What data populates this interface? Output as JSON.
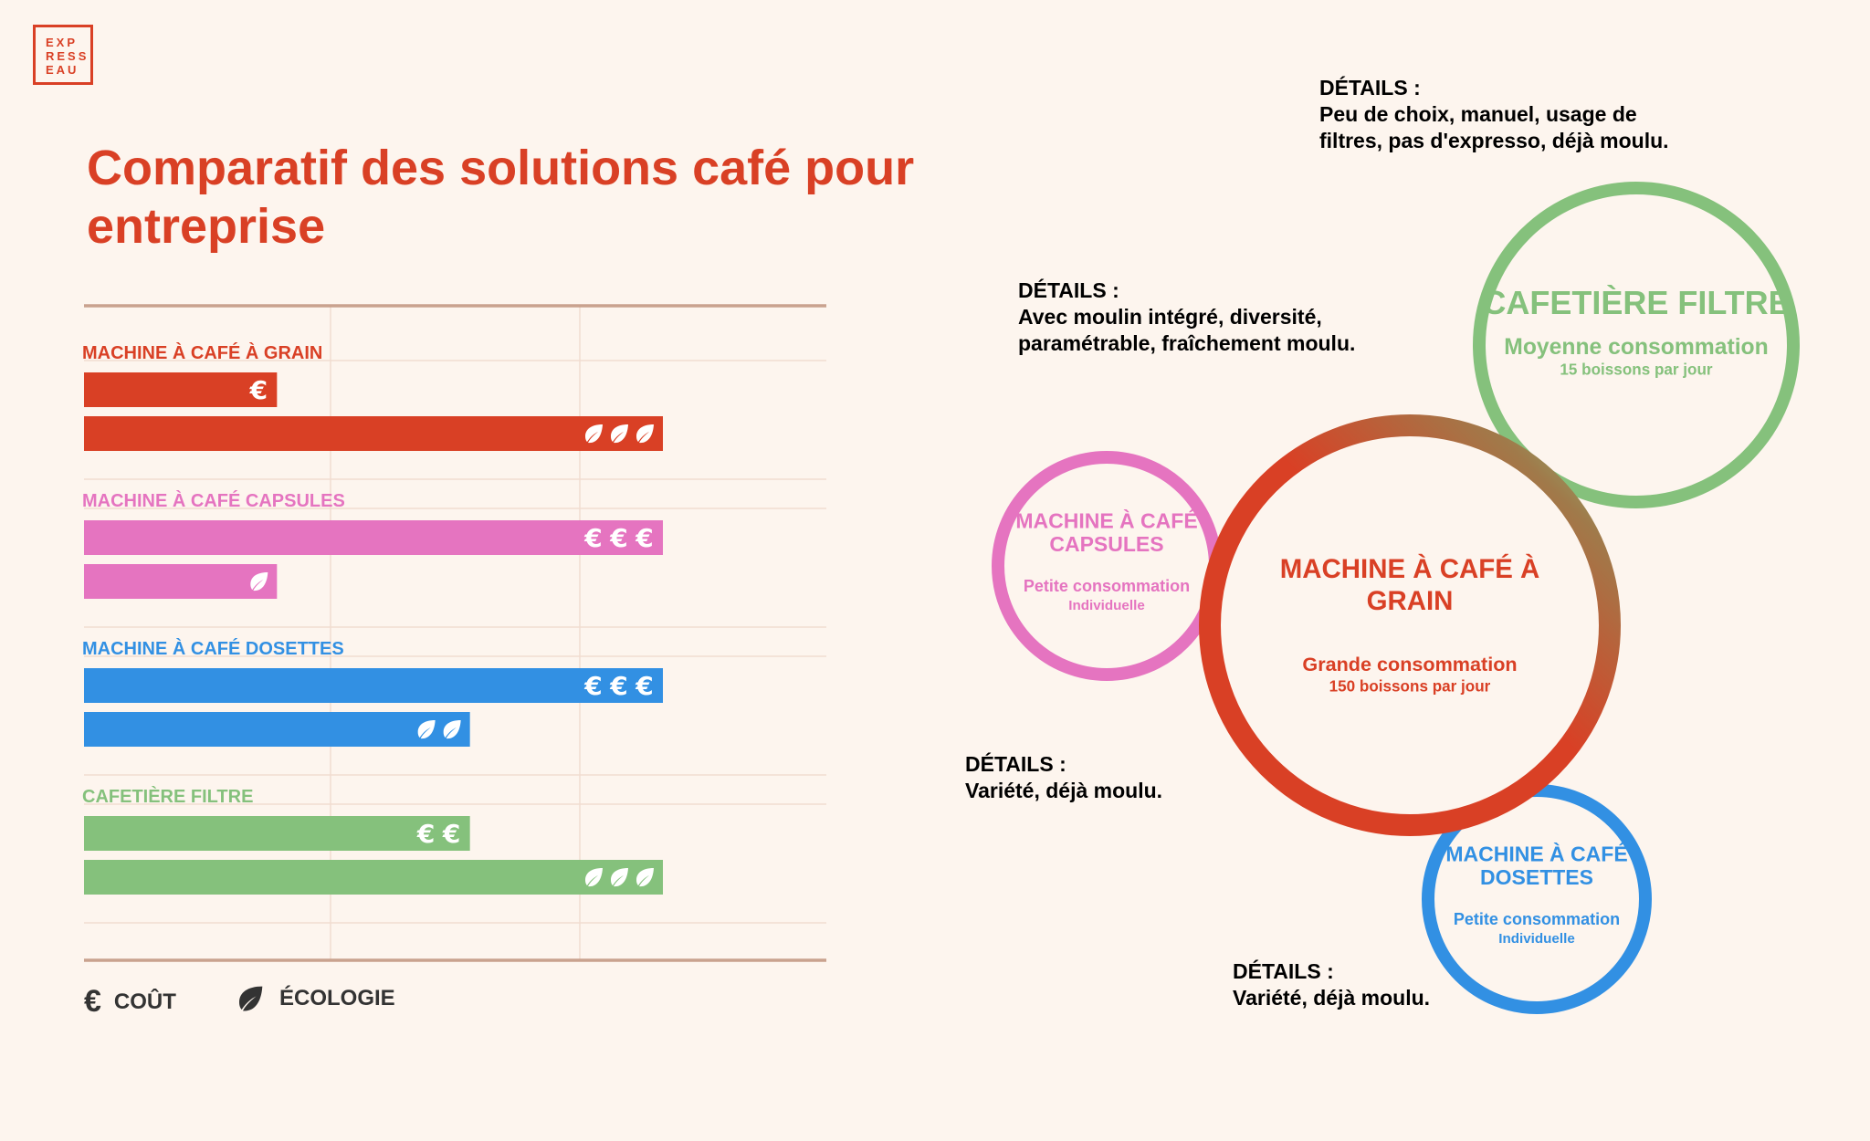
{
  "brand": {
    "logo_lines": [
      "EXP",
      "RESS",
      "EAU"
    ]
  },
  "title": "Comparatif des solutions café pour entreprise",
  "colors": {
    "grain": "#d94025",
    "capsules": "#e574c0",
    "dosettes": "#3290e3",
    "filtre": "#85c17c",
    "axis": "#c9a28e",
    "grid": "#f1ddd0"
  },
  "legend": {
    "cost_symbol": "€",
    "cost_label": "COÛT",
    "eco_label": "ÉCOLOGIE"
  },
  "chart_data": {
    "type": "bar",
    "orientation": "horizontal",
    "scale_max": 3,
    "grid": true,
    "legend_position": "bottom-left",
    "categories": [
      {
        "key": "grain",
        "label": "MACHINE À CAFÉ À GRAIN",
        "cost": 1,
        "ecology": 3
      },
      {
        "key": "capsules",
        "label": "MACHINE À CAFÉ CAPSULES",
        "cost": 3,
        "ecology": 1
      },
      {
        "key": "dosettes",
        "label": "MACHINE À CAFÉ DOSETTES",
        "cost": 3,
        "ecology": 2
      },
      {
        "key": "filtre",
        "label": "CAFETIÈRE FILTRE",
        "cost": 2,
        "ecology": 3
      }
    ]
  },
  "bubbles": [
    {
      "key": "grain",
      "title_lines": [
        "MACHINE À CAFÉ À",
        "GRAIN"
      ],
      "consumption": "Grande consommation",
      "detail": "150 boissons par jour",
      "detail_heading": "DÉTAILS :",
      "detail_lines": [
        "Avec moulin intégré, diversité,",
        "paramétrable, fraîchement moulu."
      ]
    },
    {
      "key": "filtre",
      "title_lines": [
        "CAFETIÈRE FILTRE"
      ],
      "consumption": "Moyenne consommation",
      "detail": "15 boissons par jour",
      "detail_heading": "DÉTAILS :",
      "detail_lines": [
        "Peu de choix, manuel, usage de",
        "filtres, pas d'expresso, déjà moulu."
      ]
    },
    {
      "key": "capsules",
      "title_lines": [
        "MACHINE À CAFÉ",
        "CAPSULES"
      ],
      "consumption": "Petite consommation",
      "detail": "Individuelle",
      "detail_heading": "DÉTAILS :",
      "detail_lines": [
        "Variété, déjà moulu."
      ]
    },
    {
      "key": "dosettes",
      "title_lines": [
        "MACHINE À CAFÉ",
        "DOSETTES"
      ],
      "consumption": "Petite consommation",
      "detail": "Individuelle",
      "detail_heading": "DÉTAILS :",
      "detail_lines": [
        "Variété, déjà moulu."
      ]
    }
  ]
}
